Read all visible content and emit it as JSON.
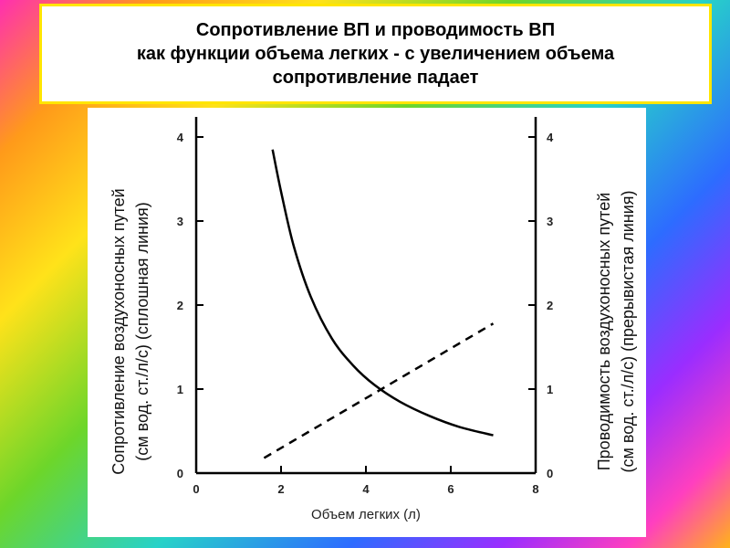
{
  "title": {
    "lines": [
      "Сопротивление ВП и проводимость ВП",
      "как функции объема легких  - с увеличением объема",
      "сопротивление падает"
    ]
  },
  "chart_data": {
    "type": "line",
    "xlabel": "Объем легких (л)",
    "ylabel_left": [
      "Сопротивление воздухоносных путей",
      "(см вод. ст./л/с) (сплошная линия)"
    ],
    "ylabel_right": [
      "Проводимость воздухоносных путей",
      "(см вод. ст./л/с) (прерывистая линия)"
    ],
    "xlim": [
      0,
      8
    ],
    "ylim_left": [
      0,
      4
    ],
    "ylim_right": [
      0,
      4
    ],
    "x_ticks": [
      "0",
      "2",
      "4",
      "6",
      "8"
    ],
    "y_ticks_left": [
      "0",
      "1",
      "2",
      "3",
      "4"
    ],
    "y_ticks_right": [
      "0",
      "1",
      "2",
      "3",
      "4"
    ],
    "series": [
      {
        "style": "solid",
        "axis": "left",
        "color": "#000000",
        "x": [
          1.8,
          2.0,
          2.3,
          2.7,
          3.2,
          3.7,
          4.2,
          4.8,
          5.5,
          6.2,
          7.0
        ],
        "y": [
          3.85,
          3.35,
          2.7,
          2.1,
          1.6,
          1.28,
          1.05,
          0.85,
          0.68,
          0.55,
          0.45
        ]
      },
      {
        "style": "dashed",
        "axis": "right",
        "color": "#000000",
        "x": [
          1.6,
          7.0
        ],
        "y": [
          0.18,
          1.78
        ]
      }
    ]
  }
}
